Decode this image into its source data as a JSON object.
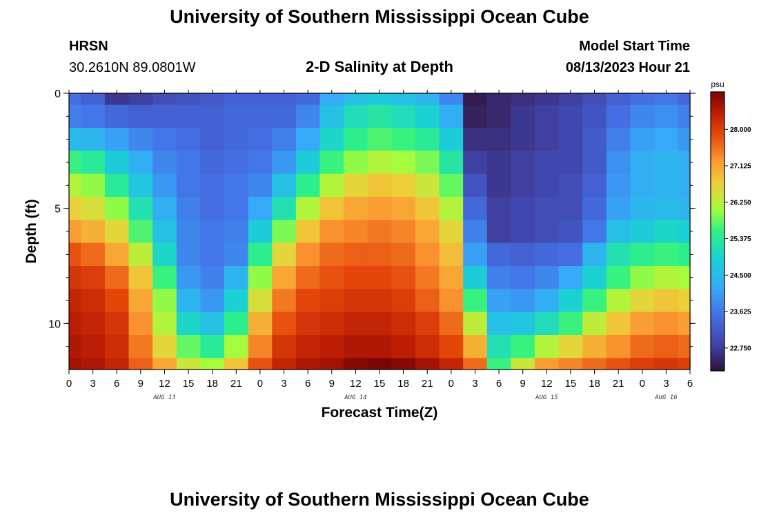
{
  "page": {
    "title_top": "University of Southern Mississippi Ocean Cube",
    "title_bottom": "University of Southern Mississippi Ocean Cube",
    "station": "HRSN",
    "coords": "30.2610N  89.0801W",
    "subtitle": "2-D Salinity at Depth",
    "model_start_label": "Model Start Time",
    "model_start_value": "08/13/2023 Hour 21"
  },
  "chart_data": {
    "type": "heatmap",
    "variable": "salinity",
    "units": "psu",
    "xlabel": "Forecast Time(Z)",
    "ylabel": "Depth (ft)",
    "x_hours_range": [
      0,
      78
    ],
    "x_tick_labels": [
      "0",
      "3",
      "6",
      "9",
      "12",
      "15",
      "18",
      "21",
      "0",
      "3",
      "6",
      "9",
      "12",
      "15",
      "18",
      "21",
      "0",
      "3",
      "6",
      "9",
      "12",
      "15",
      "18",
      "21",
      "0",
      "3",
      "6"
    ],
    "date_labels": [
      {
        "hour": 12,
        "label": "AUG 13"
      },
      {
        "hour": 36,
        "label": "AUG 14"
      },
      {
        "hour": 60,
        "label": "AUG 15"
      },
      {
        "hour": 75,
        "label": "AUG 16"
      }
    ],
    "y_range_ft": [
      0,
      12
    ],
    "y_tick_labels": [
      "0",
      "5",
      "10"
    ],
    "y_tick_values": [
      0,
      5,
      10
    ],
    "depth_levels_ft": [
      0,
      1,
      2,
      3,
      4,
      5,
      6,
      7,
      8,
      9,
      10,
      11,
      12
    ],
    "colorbar": {
      "min": 22.2,
      "max": 28.9,
      "tick_values": [
        22.75,
        23.625,
        24.5,
        25.375,
        26.25,
        27.125,
        28.0
      ],
      "tick_labels": [
        "22.750",
        "23.625",
        "24.500",
        "25.375",
        "26.250",
        "27.125",
        "28.000"
      ]
    },
    "profile_times_hours": [
      0,
      3,
      6,
      9,
      12,
      15,
      18,
      21,
      24,
      27,
      30,
      33,
      36,
      39,
      42,
      45,
      48,
      51,
      54,
      57,
      60,
      63,
      66,
      69,
      72,
      75,
      78
    ],
    "profiles": [
      [
        23.5,
        23.7,
        24.5,
        25.6,
        26.2,
        26.7,
        27.2,
        27.8,
        28.1,
        28.3,
        28.4,
        28.5,
        28.6
      ],
      [
        23.3,
        23.6,
        24.4,
        25.4,
        26.0,
        26.5,
        27.0,
        27.6,
        28.0,
        28.2,
        28.3,
        28.4,
        28.5
      ],
      [
        22.7,
        23.4,
        24.1,
        24.8,
        25.4,
        26.0,
        26.6,
        27.1,
        27.6,
        27.9,
        28.1,
        28.2,
        28.3
      ],
      [
        22.8,
        23.3,
        23.8,
        24.3,
        24.7,
        25.2,
        25.7,
        26.3,
        26.8,
        27.1,
        27.3,
        27.5,
        27.7
      ],
      [
        23.0,
        23.3,
        23.6,
        23.8,
        24.0,
        24.3,
        24.6,
        25.0,
        25.6,
        26.0,
        26.2,
        26.6,
        27.1
      ],
      [
        23.1,
        23.3,
        23.5,
        23.6,
        23.6,
        23.7,
        23.8,
        23.8,
        24.0,
        24.4,
        25.0,
        25.8,
        26.4
      ],
      [
        23.2,
        23.3,
        23.3,
        23.4,
        23.5,
        23.5,
        23.6,
        23.6,
        23.7,
        24.0,
        24.6,
        25.4,
        26.1
      ],
      [
        23.3,
        23.4,
        23.4,
        23.5,
        23.6,
        23.6,
        23.7,
        23.8,
        24.4,
        24.9,
        25.5,
        26.1,
        26.8
      ],
      [
        23.3,
        23.4,
        23.5,
        23.6,
        23.8,
        24.2,
        24.8,
        25.5,
        26.0,
        26.5,
        27.0,
        27.4,
        27.8
      ],
      [
        23.3,
        23.4,
        23.7,
        24.0,
        24.6,
        25.2,
        25.9,
        26.6,
        27.1,
        27.5,
        27.8,
        28.1,
        28.3
      ],
      [
        23.4,
        23.8,
        24.2,
        24.8,
        25.5,
        26.2,
        26.8,
        27.3,
        27.6,
        27.9,
        28.1,
        28.3,
        28.5
      ],
      [
        24.2,
        24.6,
        25.0,
        25.6,
        26.2,
        26.8,
        27.3,
        27.6,
        27.8,
        28.0,
        28.2,
        28.4,
        28.6
      ],
      [
        24.6,
        25.1,
        25.5,
        26.0,
        26.6,
        27.1,
        27.4,
        27.7,
        27.9,
        28.1,
        28.3,
        28.5,
        28.8
      ],
      [
        24.8,
        25.3,
        25.7,
        26.2,
        26.8,
        27.2,
        27.5,
        27.7,
        27.9,
        28.1,
        28.3,
        28.5,
        28.9
      ],
      [
        24.6,
        25.1,
        25.6,
        26.1,
        26.7,
        27.1,
        27.4,
        27.6,
        27.8,
        28.0,
        28.2,
        28.4,
        28.8
      ],
      [
        24.4,
        24.9,
        25.4,
        25.9,
        26.4,
        26.8,
        27.1,
        27.3,
        27.5,
        27.7,
        28.0,
        28.2,
        28.6
      ],
      [
        23.8,
        24.3,
        24.8,
        25.3,
        25.8,
        26.2,
        26.6,
        26.9,
        27.1,
        27.3,
        27.6,
        27.9,
        28.3
      ],
      [
        22.3,
        22.4,
        22.6,
        22.8,
        23.1,
        23.4,
        23.7,
        24.1,
        24.8,
        25.6,
        26.3,
        27.0,
        27.6
      ],
      [
        22.5,
        22.5,
        22.6,
        22.7,
        22.7,
        22.8,
        22.8,
        23.4,
        23.7,
        24.1,
        24.6,
        25.2,
        25.6
      ],
      [
        22.6,
        22.7,
        22.7,
        22.8,
        22.8,
        22.9,
        22.9,
        23.3,
        23.6,
        24.0,
        24.7,
        25.6,
        26.4
      ],
      [
        22.7,
        22.8,
        22.8,
        22.9,
        22.9,
        23.0,
        23.0,
        23.4,
        23.8,
        24.3,
        25.1,
        26.2,
        27.2
      ],
      [
        22.8,
        22.9,
        22.9,
        22.9,
        23.0,
        23.0,
        23.1,
        23.5,
        24.2,
        24.9,
        25.6,
        26.6,
        27.4
      ],
      [
        23.0,
        23.1,
        23.2,
        23.2,
        23.3,
        23.4,
        23.6,
        24.4,
        24.9,
        25.6,
        26.3,
        27.0,
        27.6
      ],
      [
        23.3,
        23.5,
        23.7,
        23.9,
        24.0,
        24.1,
        24.6,
        25.2,
        25.6,
        26.2,
        26.8,
        27.3,
        27.8
      ],
      [
        23.5,
        23.8,
        24.1,
        24.3,
        24.3,
        24.4,
        24.8,
        25.5,
        26.0,
        26.6,
        27.2,
        27.6,
        28.0
      ],
      [
        23.6,
        23.9,
        24.2,
        24.4,
        24.4,
        24.5,
        25.0,
        25.6,
        26.2,
        26.8,
        27.3,
        27.7,
        28.1
      ],
      [
        23.4,
        23.7,
        24.0,
        24.3,
        24.3,
        24.4,
        24.9,
        25.5,
        26.1,
        26.7,
        27.2,
        27.6,
        28.0
      ]
    ]
  }
}
